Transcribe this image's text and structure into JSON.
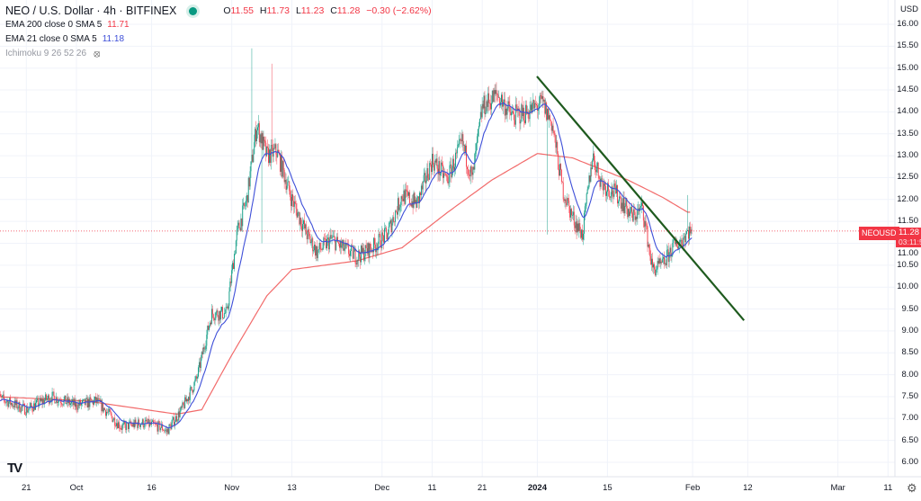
{
  "header": {
    "title": "NEO / U.S. Dollar · 4h · BITFINEX",
    "ohlc": {
      "o_label": "O",
      "o": "11.55",
      "h_label": "H",
      "h": "11.73",
      "l_label": "L",
      "l": "11.23",
      "c_label": "C",
      "c": "11.28",
      "change": "−0.30 (−2.62%)"
    },
    "indicators": [
      {
        "label": "EMA 200 close 0 SMA 5",
        "value": "11.71",
        "color": "#f23645"
      },
      {
        "label": "EMA 21 close 0 SMA 5",
        "value": "11.18",
        "color": "#3e4fd8"
      },
      {
        "label": "Ichimoku 9 26 52 26",
        "value": "",
        "icon": "eye-hidden-icon"
      }
    ]
  },
  "price_axis": {
    "currency": "USD",
    "ticks": [
      "16.00",
      "15.50",
      "15.00",
      "14.50",
      "14.00",
      "13.50",
      "13.00",
      "12.50",
      "12.00",
      "11.50",
      "11.00",
      "10.50",
      "10.00",
      "9.50",
      "9.00",
      "8.50",
      "8.00",
      "7.50",
      "7.00",
      "6.50",
      "6.00"
    ],
    "symbol_tag": "NEOUSD",
    "last_price": "11.28",
    "countdown": "03:11:5"
  },
  "time_axis": {
    "ticks": [
      {
        "label": "21",
        "date": "2023-09-21"
      },
      {
        "label": "Oct",
        "date": "2023-10-01"
      },
      {
        "label": "16",
        "date": "2023-10-16"
      },
      {
        "label": "Nov",
        "date": "2023-11-01"
      },
      {
        "label": "13",
        "date": "2023-11-13"
      },
      {
        "label": "Dec",
        "date": "2023-12-01"
      },
      {
        "label": "11",
        "date": "2023-12-11"
      },
      {
        "label": "21",
        "date": "2023-12-21"
      },
      {
        "label": "2024",
        "date": "2024-01-01",
        "bold": true
      },
      {
        "label": "15",
        "date": "2024-01-15"
      },
      {
        "label": "Feb",
        "date": "2024-02-01"
      },
      {
        "label": "12",
        "date": "2024-02-12"
      },
      {
        "label": "Mar",
        "date": "2024-03-01"
      },
      {
        "label": "11",
        "date": "2024-03-11"
      }
    ]
  },
  "chart_data": {
    "type": "candlestick",
    "interval": "4h",
    "ylim": [
      6.0,
      16.0
    ],
    "xlim": [
      "2023-09-15",
      "2024-03-13"
    ],
    "grid": true,
    "colors": {
      "up": "#089981",
      "down": "#f23645",
      "ema200": "#f26b6b",
      "ema21": "#3e4fd8",
      "trendline": "#1e5a1e"
    },
    "close_path": [
      [
        "2023-09-15",
        7.5
      ],
      [
        "2023-09-21",
        7.2
      ],
      [
        "2023-09-26",
        7.5
      ],
      [
        "2023-10-01",
        7.3
      ],
      [
        "2023-10-05",
        7.4
      ],
      [
        "2023-10-10",
        6.8
      ],
      [
        "2023-10-14",
        6.9
      ],
      [
        "2023-10-18",
        6.8
      ],
      [
        "2023-10-19",
        6.7
      ],
      [
        "2023-10-22",
        7.2
      ],
      [
        "2023-10-25",
        7.9
      ],
      [
        "2023-10-28",
        9.4
      ],
      [
        "2023-10-31",
        9.4
      ],
      [
        "2023-11-02",
        11.2
      ],
      [
        "2023-11-04",
        12.0
      ],
      [
        "2023-11-06",
        13.7
      ],
      [
        "2023-11-08",
        13.0
      ],
      [
        "2023-11-10",
        13.1
      ],
      [
        "2023-11-13",
        12.0
      ],
      [
        "2023-11-16",
        11.2
      ],
      [
        "2023-11-18",
        10.8
      ],
      [
        "2023-11-21",
        11.1
      ],
      [
        "2023-11-23",
        10.9
      ],
      [
        "2023-11-26",
        10.7
      ],
      [
        "2023-11-29",
        10.9
      ],
      [
        "2023-12-02",
        11.2
      ],
      [
        "2023-12-05",
        12.1
      ],
      [
        "2023-12-08",
        11.9
      ],
      [
        "2023-12-11",
        12.9
      ],
      [
        "2023-12-14",
        12.45
      ],
      [
        "2023-12-17",
        13.3
      ],
      [
        "2023-12-19",
        12.45
      ],
      [
        "2023-12-21",
        14.1
      ],
      [
        "2023-12-24",
        14.4
      ],
      [
        "2023-12-27",
        13.9
      ],
      [
        "2023-12-30",
        14.0
      ],
      [
        "2024-01-02",
        14.2
      ],
      [
        "2024-01-04",
        13.7
      ],
      [
        "2024-01-06",
        12.25
      ],
      [
        "2024-01-08",
        11.6
      ],
      [
        "2024-01-10",
        11.2
      ],
      [
        "2024-01-12",
        13.0
      ],
      [
        "2024-01-14",
        12.35
      ],
      [
        "2024-01-17",
        12.1
      ],
      [
        "2024-01-20",
        11.6
      ],
      [
        "2024-01-22",
        11.8
      ],
      [
        "2024-01-24",
        10.4
      ],
      [
        "2024-01-26",
        10.5
      ],
      [
        "2024-01-28",
        10.9
      ],
      [
        "2024-01-30",
        11.1
      ],
      [
        "2024-01-31",
        11.28
      ]
    ],
    "wick_spikes": [
      {
        "date": "2023-11-05",
        "high": 15.45
      },
      {
        "date": "2023-11-09",
        "high": 15.1
      },
      {
        "date": "2023-11-07",
        "low": 11.0
      },
      {
        "date": "2024-01-03",
        "low": 11.2
      },
      {
        "date": "2024-01-31",
        "high": 12.1
      }
    ],
    "ema200_path": [
      [
        "2023-09-15",
        7.5
      ],
      [
        "2023-10-03",
        7.4
      ],
      [
        "2023-10-21",
        7.1
      ],
      [
        "2023-10-26",
        7.2
      ],
      [
        "2023-11-01",
        8.45
      ],
      [
        "2023-11-08",
        9.8
      ],
      [
        "2023-11-13",
        10.4
      ],
      [
        "2023-11-26",
        10.6
      ],
      [
        "2023-12-05",
        10.9
      ],
      [
        "2023-12-14",
        11.7
      ],
      [
        "2023-12-23",
        12.45
      ],
      [
        "2024-01-01",
        13.05
      ],
      [
        "2024-01-08",
        12.95
      ],
      [
        "2024-01-19",
        12.45
      ],
      [
        "2024-01-26",
        12.05
      ],
      [
        "2024-01-31",
        11.71
      ]
    ],
    "ema21_period": 21,
    "trendline": {
      "start": [
        "2023-12-31T22:00",
        14.81
      ],
      "end": [
        "2024-02-11T06:00",
        9.24
      ]
    }
  }
}
